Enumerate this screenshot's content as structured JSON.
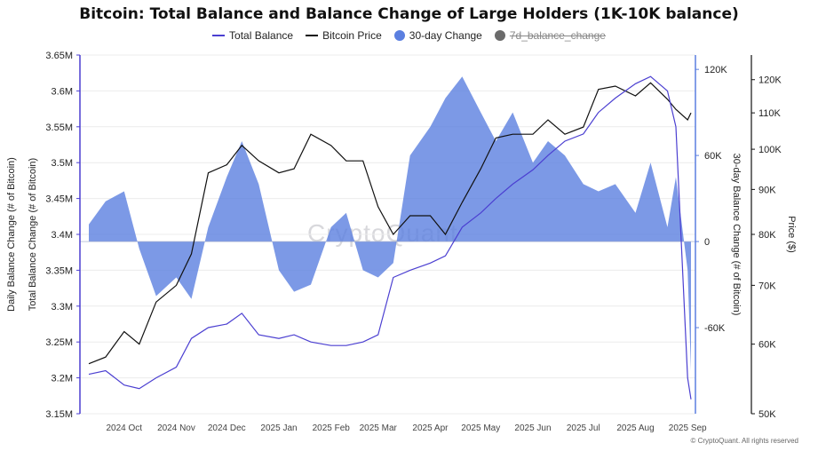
{
  "title": "Bitcoin: Total Balance and Balance Change of Large Holders (1K-10K balance)",
  "legend": [
    {
      "label": "Total Balance",
      "color": "#4b3fd1",
      "kind": "line",
      "hidden": false
    },
    {
      "label": "Bitcoin Price",
      "color": "#111111",
      "kind": "line",
      "hidden": false
    },
    {
      "label": "30-day Change",
      "color": "#5b7fe0",
      "kind": "dot",
      "hidden": false
    },
    {
      "label": "7d_balance_change",
      "color": "#6b6b6b",
      "kind": "dot",
      "hidden": true
    }
  ],
  "watermark": "CryptoQuant",
  "footer": "CryptoQuant. All rights reserved",
  "chart_data": {
    "type": "line",
    "x": [
      "2024-09-10",
      "2024-09-20",
      "2024-10-01",
      "2024-10-10",
      "2024-10-20",
      "2024-11-01",
      "2024-11-10",
      "2024-11-20",
      "2024-12-01",
      "2024-12-10",
      "2024-12-20",
      "2025-01-01",
      "2025-01-10",
      "2025-01-20",
      "2025-02-01",
      "2025-02-10",
      "2025-02-20",
      "2025-03-01",
      "2025-03-10",
      "2025-03-20",
      "2025-04-01",
      "2025-04-10",
      "2025-04-20",
      "2025-05-01",
      "2025-05-10",
      "2025-05-20",
      "2025-06-01",
      "2025-06-10",
      "2025-06-20",
      "2025-07-01",
      "2025-07-10",
      "2025-07-20",
      "2025-08-01",
      "2025-08-10",
      "2025-08-20",
      "2025-08-25",
      "2025-09-01",
      "2025-09-03"
    ],
    "x_ticks": [
      "2024 Oct",
      "2024 Nov",
      "2024 Dec",
      "2025 Jan",
      "2025 Feb",
      "2025 Mar",
      "2025 Apr",
      "2025 May",
      "2025 Jun",
      "2025 Jul",
      "2025 Aug",
      "2025 Sep"
    ],
    "series": [
      {
        "name": "Total Balance",
        "axis": "left",
        "color": "#4b3fd1",
        "values": [
          3.205,
          3.21,
          3.19,
          3.185,
          3.2,
          3.215,
          3.255,
          3.27,
          3.275,
          3.29,
          3.26,
          3.255,
          3.26,
          3.25,
          3.245,
          3.245,
          3.25,
          3.26,
          3.34,
          3.35,
          3.36,
          3.37,
          3.41,
          3.43,
          3.45,
          3.47,
          3.49,
          3.51,
          3.53,
          3.54,
          3.57,
          3.59,
          3.61,
          3.62,
          3.6,
          3.55,
          3.2,
          3.17
        ]
      },
      {
        "name": "Bitcoin Price",
        "axis": "price",
        "color": "#111111",
        "values": [
          57000,
          58000,
          62000,
          60000,
          67000,
          70000,
          76000,
          94000,
          96000,
          101000,
          97000,
          94000,
          95000,
          104000,
          101000,
          97000,
          97000,
          86000,
          80000,
          84000,
          84000,
          80000,
          87000,
          95000,
          103000,
          104000,
          104000,
          108000,
          104000,
          106000,
          117000,
          118000,
          115000,
          119000,
          114000,
          111000,
          108000,
          110000
        ]
      },
      {
        "name": "30-day Change",
        "axis": "right",
        "color": "#5b7fe0",
        "values": [
          12000,
          28000,
          35000,
          -5000,
          -38000,
          -25000,
          -40000,
          10000,
          45000,
          70000,
          40000,
          -20000,
          -35000,
          -30000,
          10000,
          20000,
          -20000,
          -25000,
          -15000,
          60000,
          80000,
          100000,
          115000,
          90000,
          70000,
          90000,
          55000,
          70000,
          60000,
          40000,
          35000,
          40000,
          20000,
          55000,
          10000,
          45000,
          -20000,
          -90000
        ]
      }
    ],
    "left_axis": {
      "label": "Total Balance Change (# of Bitcoin)",
      "outer_label": "Daily Balance Change (# of Bitcoin)",
      "ylim": [
        3.15,
        3.65
      ],
      "ticks": [
        "3.15M",
        "3.2M",
        "3.25M",
        "3.3M",
        "3.35M",
        "3.4M",
        "3.45M",
        "3.5M",
        "3.55M",
        "3.6M",
        "3.65M"
      ]
    },
    "right_axis": {
      "label": "30-day Balance Change (# of Bitcoin)",
      "ylim": [
        -120000,
        130000
      ],
      "ticks": [
        "120K",
        "60K",
        "0",
        "-60K"
      ]
    },
    "price_axis": {
      "label": "Price ($)",
      "scale": "log",
      "ylim": [
        50000,
        128000
      ],
      "ticks": [
        "50K",
        "60K",
        "70K",
        "80K",
        "90K",
        "100K",
        "110K",
        "120K"
      ]
    },
    "grid": true,
    "legend_position": "top"
  }
}
